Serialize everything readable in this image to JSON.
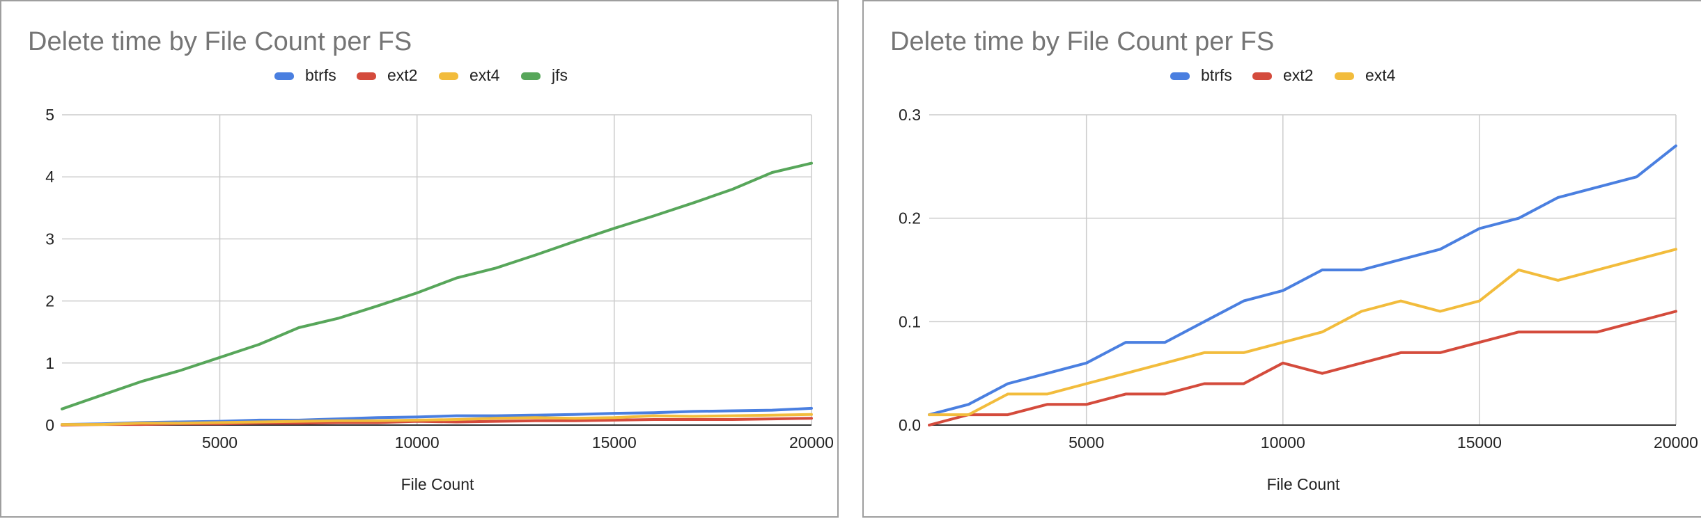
{
  "chart_data": [
    {
      "type": "line",
      "title": "Delete time by File Count per FS",
      "xlabel": "File Count",
      "ylabel": "",
      "xlim": [
        1000,
        20000
      ],
      "ylim": [
        0,
        5
      ],
      "xticks": [
        5000,
        10000,
        15000,
        20000
      ],
      "xtick_labels": [
        "5000",
        "10000",
        "15000",
        "20000"
      ],
      "yticks": [
        0,
        1,
        2,
        3,
        4,
        5
      ],
      "ytick_labels": [
        "0",
        "1",
        "2",
        "3",
        "4",
        "5"
      ],
      "grid": true,
      "legend": "top-center",
      "x": [
        1000,
        2000,
        3000,
        4000,
        5000,
        6000,
        7000,
        8000,
        9000,
        10000,
        11000,
        12000,
        13000,
        14000,
        15000,
        16000,
        17000,
        18000,
        19000,
        20000
      ],
      "series": [
        {
          "name": "btrfs",
          "color": "#4a7fe0",
          "values": [
            0.01,
            0.02,
            0.04,
            0.05,
            0.06,
            0.08,
            0.08,
            0.1,
            0.12,
            0.13,
            0.15,
            0.15,
            0.16,
            0.17,
            0.19,
            0.2,
            0.22,
            0.23,
            0.24,
            0.27
          ]
        },
        {
          "name": "ext2",
          "color": "#d44b3c",
          "values": [
            0.0,
            0.01,
            0.01,
            0.02,
            0.02,
            0.03,
            0.03,
            0.04,
            0.04,
            0.06,
            0.05,
            0.06,
            0.07,
            0.07,
            0.08,
            0.09,
            0.09,
            0.09,
            0.1,
            0.11
          ]
        },
        {
          "name": "ext4",
          "color": "#f2bc3c",
          "values": [
            0.01,
            0.01,
            0.03,
            0.03,
            0.04,
            0.05,
            0.06,
            0.07,
            0.07,
            0.08,
            0.09,
            0.11,
            0.12,
            0.11,
            0.12,
            0.15,
            0.14,
            0.15,
            0.16,
            0.17
          ]
        },
        {
          "name": "jfs",
          "color": "#57a65a",
          "values": [
            0.26,
            0.48,
            0.7,
            0.88,
            1.09,
            1.3,
            1.57,
            1.72,
            1.92,
            2.13,
            2.37,
            2.53,
            2.74,
            2.96,
            3.17,
            3.37,
            3.58,
            3.8,
            4.07,
            4.22
          ]
        }
      ]
    },
    {
      "type": "line",
      "title": "Delete time by File Count per FS",
      "xlabel": "File Count",
      "ylabel": "",
      "xlim": [
        1000,
        20000
      ],
      "ylim": [
        0,
        0.3
      ],
      "xticks": [
        5000,
        10000,
        15000,
        20000
      ],
      "xtick_labels": [
        "5000",
        "10000",
        "15000",
        "20000"
      ],
      "yticks": [
        0,
        0.1,
        0.2,
        0.3
      ],
      "ytick_labels": [
        "0.0",
        "0.1",
        "0.2",
        "0.3"
      ],
      "grid": true,
      "legend": "top-center",
      "x": [
        1000,
        2000,
        3000,
        4000,
        5000,
        6000,
        7000,
        8000,
        9000,
        10000,
        11000,
        12000,
        13000,
        14000,
        15000,
        16000,
        17000,
        18000,
        19000,
        20000
      ],
      "series": [
        {
          "name": "btrfs",
          "color": "#4a7fe0",
          "values": [
            0.01,
            0.02,
            0.04,
            0.05,
            0.06,
            0.08,
            0.08,
            0.1,
            0.12,
            0.13,
            0.15,
            0.15,
            0.16,
            0.17,
            0.19,
            0.2,
            0.22,
            0.23,
            0.24,
            0.27
          ]
        },
        {
          "name": "ext2",
          "color": "#d44b3c",
          "values": [
            0.0,
            0.01,
            0.01,
            0.02,
            0.02,
            0.03,
            0.03,
            0.04,
            0.04,
            0.06,
            0.05,
            0.06,
            0.07,
            0.07,
            0.08,
            0.09,
            0.09,
            0.09,
            0.1,
            0.11
          ]
        },
        {
          "name": "ext4",
          "color": "#f2bc3c",
          "values": [
            0.01,
            0.01,
            0.03,
            0.03,
            0.04,
            0.05,
            0.06,
            0.07,
            0.07,
            0.08,
            0.09,
            0.11,
            0.12,
            0.11,
            0.12,
            0.15,
            0.14,
            0.15,
            0.16,
            0.17
          ]
        }
      ]
    }
  ]
}
